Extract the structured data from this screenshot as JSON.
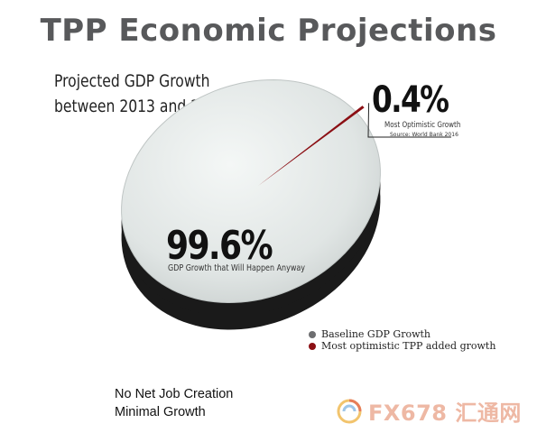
{
  "title": "TPP Economic Projections",
  "chart_data": {
    "type": "pie",
    "title": "Projected GDP Growth between 2013 and 2025",
    "title_lines": [
      "Projected GDP Growth",
      "between 2013 and 2025"
    ],
    "slices": [
      {
        "label": "Baseline GDP Growth",
        "value": 99.6,
        "display": "99.6%",
        "caption": "GDP Growth that Will Happen Anyway",
        "color": "#e3e7e6"
      },
      {
        "label": "Most optimistic TPP added growth",
        "value": 0.4,
        "display": "0.4%",
        "caption": "Most Optimistic Growth",
        "color": "#8b0f14"
      }
    ],
    "source_note": "Source: World Bank 2016",
    "legend_placement": "bottom-right"
  },
  "colors": {
    "title": "#58595b",
    "pie_face": "#e3e7e6",
    "pie_side": "#1a1a1a",
    "accent_slice": "#8b0f14",
    "baseline_dot": "#6d6e70",
    "optimistic_dot": "#8b0f14"
  },
  "notes": [
    "No Net Job Creation",
    "Minimal Growth"
  ],
  "watermark": {
    "text": "FX678 汇通网",
    "icon": "swirl-logo-icon"
  }
}
